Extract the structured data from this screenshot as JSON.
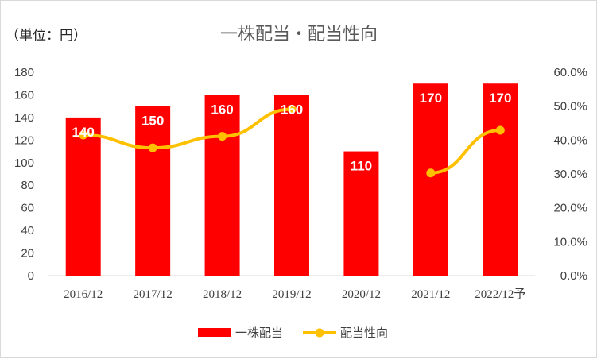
{
  "chart_data": {
    "type": "bar",
    "title": "一株配当・配当性向",
    "unit_label": "（単位：円）",
    "categories": [
      "2016/12",
      "2017/12",
      "2018/12",
      "2019/12",
      "2020/12",
      "2021/12",
      "2022/12予"
    ],
    "series": [
      {
        "name": "一株配当",
        "type": "bar",
        "axis": "left",
        "color": "#ff0000",
        "values": [
          140,
          150,
          160,
          160,
          110,
          170,
          170
        ],
        "data_labels": [
          "140",
          "150",
          "160",
          "160",
          "110",
          "170",
          "170"
        ]
      },
      {
        "name": "配当性向",
        "type": "line",
        "axis": "right",
        "color": "#ffc000",
        "values": [
          0.415,
          0.377,
          0.411,
          0.491,
          null,
          0.303,
          0.429
        ]
      }
    ],
    "y_left": {
      "min": 0,
      "max": 180,
      "step": 20,
      "tick_labels": [
        "0",
        "20",
        "40",
        "60",
        "80",
        "100",
        "120",
        "140",
        "160",
        "180"
      ]
    },
    "y_right": {
      "min": 0,
      "max": 0.6,
      "step": 0.1,
      "tick_labels": [
        "0.0%",
        "10.0%",
        "20.0%",
        "30.0%",
        "40.0%",
        "50.0%",
        "60.0%"
      ]
    },
    "grid": false,
    "legend_position": "bottom"
  }
}
